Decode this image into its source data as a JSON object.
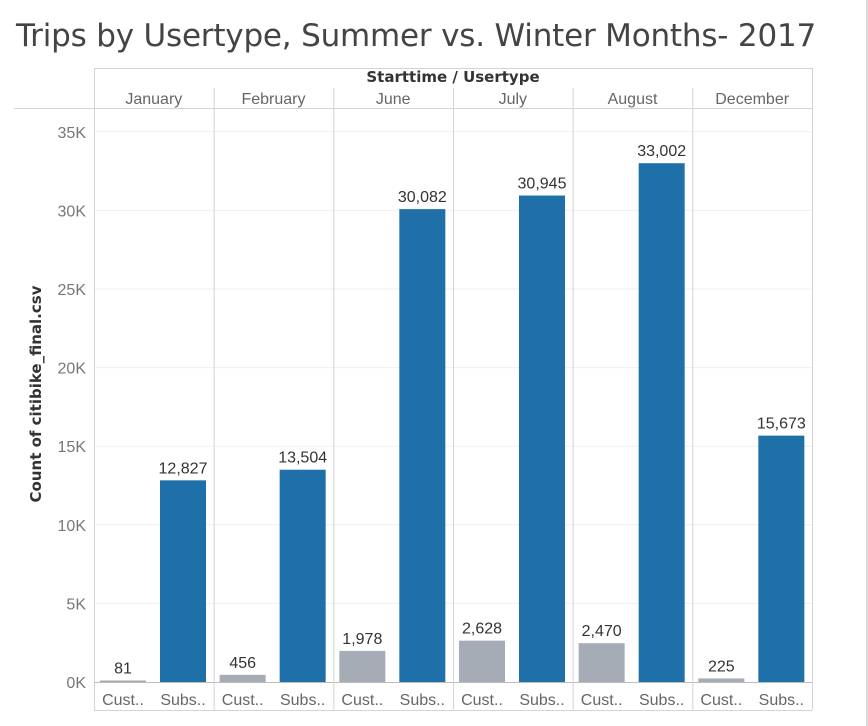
{
  "chart_data": {
    "type": "bar",
    "title": "Trips by Usertype, Summer vs. Winter Months- 2017",
    "header": "Starttime / Usertype",
    "ylabel": "Count of citibike_final.csv",
    "ylim": [
      0,
      35000
    ],
    "yticks": [
      "0K",
      "5K",
      "10K",
      "15K",
      "20K",
      "25K",
      "30K",
      "35K"
    ],
    "ytick_values": [
      0,
      5000,
      10000,
      15000,
      20000,
      25000,
      30000,
      35000
    ],
    "grid": true,
    "categories": [
      "January",
      "February",
      "June",
      "July",
      "August",
      "December"
    ],
    "subcategory_labels": [
      "Cust..",
      "Subs.."
    ],
    "series": [
      {
        "name": "Customer",
        "color": "#a5acb6",
        "values": [
          81,
          456,
          1978,
          2628,
          2470,
          225
        ],
        "labels": [
          "81",
          "456",
          "1,978",
          "2,628",
          "2,470",
          "225"
        ]
      },
      {
        "name": "Subscriber",
        "color": "#1f6fa9",
        "values": [
          12827,
          13504,
          30082,
          30945,
          33002,
          15673
        ],
        "labels": [
          "12,827",
          "13,504",
          "30,082",
          "30,945",
          "33,002",
          "15,673"
        ]
      }
    ]
  }
}
